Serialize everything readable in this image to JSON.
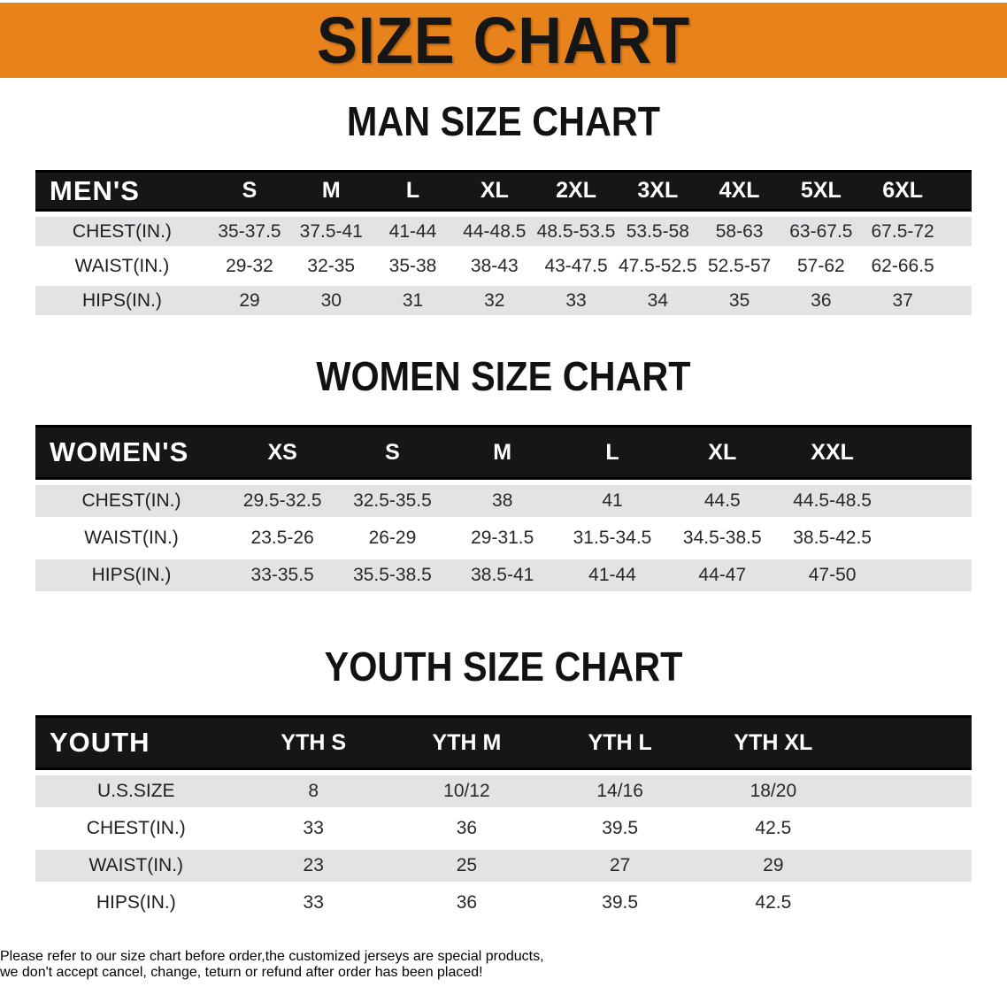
{
  "banner": {
    "title": "SIZE CHART"
  },
  "colors": {
    "banner_bg": "#E8831C",
    "header_bar": "#161616",
    "row_stripe": "#E3E3E5",
    "disclaimer_red": "#AF2E28"
  },
  "sections": [
    {
      "heading": "MAN SIZE CHART",
      "corner": "MEN'S",
      "columns": [
        "S",
        "M",
        "L",
        "XL",
        "2XL",
        "3XL",
        "4XL",
        "5XL",
        "6XL"
      ],
      "rows": [
        {
          "label": "CHEST(IN.)",
          "values": [
            "35-37.5",
            "37.5-41",
            "41-44",
            "44-48.5",
            "48.5-53.5",
            "53.5-58",
            "58-63",
            "63-67.5",
            "67.5-72"
          ]
        },
        {
          "label": "WAIST(IN.)",
          "values": [
            "29-32",
            "32-35",
            "35-38",
            "38-43",
            "43-47.5",
            "47.5-52.5",
            "52.5-57",
            "57-62",
            "62-66.5"
          ]
        },
        {
          "label": "HIPS(IN.)",
          "values": [
            "29",
            "30",
            "31",
            "32",
            "33",
            "34",
            "35",
            "36",
            "37"
          ]
        }
      ]
    },
    {
      "heading": "WOMEN SIZE CHART",
      "corner": "WOMEN'S",
      "columns": [
        "XS",
        "S",
        "M",
        "L",
        "XL",
        "XXL"
      ],
      "rows": [
        {
          "label": "CHEST(IN.)",
          "values": [
            "29.5-32.5",
            "32.5-35.5",
            "38",
            "41",
            "44.5",
            "44.5-48.5"
          ]
        },
        {
          "label": "WAIST(IN.)",
          "values": [
            "23.5-26",
            "26-29",
            "29-31.5",
            "31.5-34.5",
            "34.5-38.5",
            "38.5-42.5"
          ]
        },
        {
          "label": "HIPS(IN.)",
          "values": [
            "33-35.5",
            "35.5-38.5",
            "38.5-41",
            "41-44",
            "44-47",
            "47-50"
          ]
        }
      ]
    },
    {
      "heading": "YOUTH SIZE CHART",
      "corner": "YOUTH",
      "columns": [
        "YTH S",
        "YTH M",
        "YTH L",
        "YTH XL"
      ],
      "rows": [
        {
          "label": "U.S.SIZE",
          "values": [
            "8",
            "10/12",
            "14/16",
            "18/20"
          ]
        },
        {
          "label": "CHEST(IN.)",
          "values": [
            "33",
            "36",
            "39.5",
            "42.5"
          ]
        },
        {
          "label": "WAIST(IN.)",
          "values": [
            "23",
            "25",
            "27",
            "29"
          ]
        },
        {
          "label": "HIPS(IN.)",
          "values": [
            "33",
            "36",
            "39.5",
            "42.5"
          ]
        }
      ]
    }
  ],
  "disclaimer": {
    "line1": "Please refer to our size chart before order,the customized jerseys are special products,",
    "line2": "we don't accept cancel, change, teturn or refund after order has been placed!"
  }
}
